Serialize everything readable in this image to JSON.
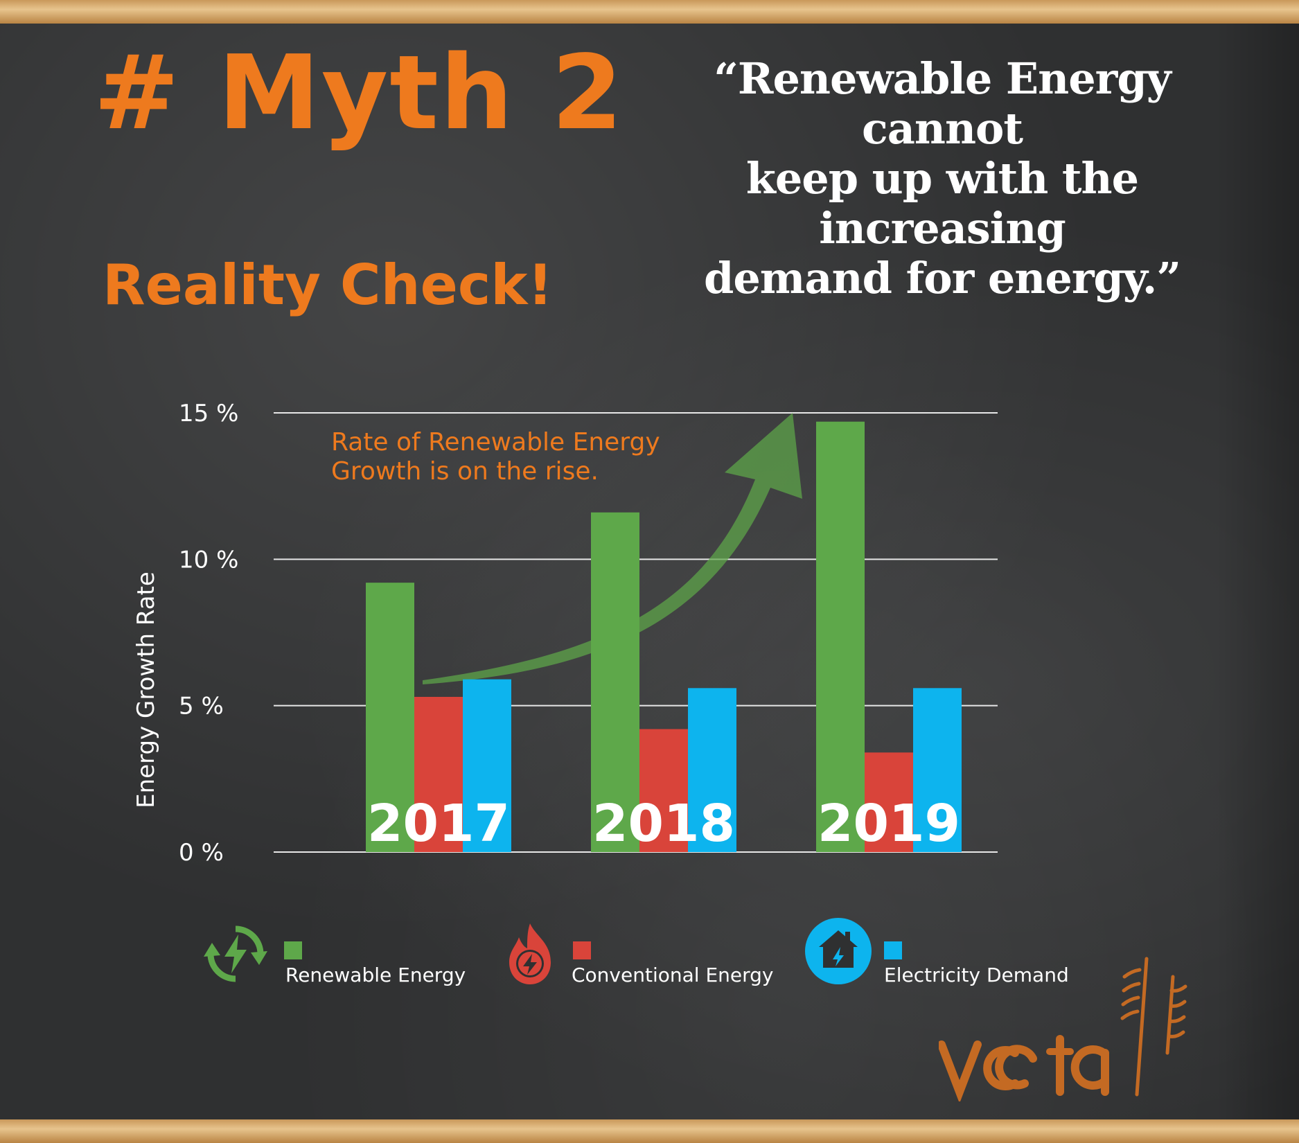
{
  "header": {
    "myth_title": "# Myth 2",
    "quote_line1": "“Renewable Energy cannot",
    "quote_line2": "keep up with the increasing",
    "quote_line3": "demand for energy.”",
    "reality_heading": "Reality Check!"
  },
  "chart_data": {
    "type": "bar",
    "categories": [
      "2017",
      "2018",
      "2019"
    ],
    "series": [
      {
        "name": "Renewable Energy",
        "color": "#5ea84a",
        "values": [
          9.2,
          11.6,
          14.7
        ]
      },
      {
        "name": "Conventional Energy",
        "color": "#d9443a",
        "values": [
          5.3,
          4.2,
          3.4
        ]
      },
      {
        "name": "Electricity Demand",
        "color": "#0db4ee",
        "values": [
          5.9,
          5.6,
          5.6
        ]
      }
    ],
    "ylabel": "Energy Growth Rate",
    "ylim": [
      0,
      15
    ],
    "yticks": [
      "0 %",
      "5 %",
      "10 %",
      "15 %"
    ],
    "ytick_values": [
      0,
      5,
      10,
      15
    ],
    "grid": true,
    "legend_position": "bottom",
    "annotation": {
      "line1": "Rate of Renewable Energy",
      "line2": "Growth is on the rise.",
      "color": "#ee7a1e"
    }
  },
  "legend": {
    "icons": [
      "recycle-bolt-icon",
      "flame-bolt-icon",
      "house-bolt-icon"
    ]
  },
  "brand": {
    "logo_text": "voltta",
    "accent": "#ee7a1e",
    "logo_color": "#c46a23"
  }
}
